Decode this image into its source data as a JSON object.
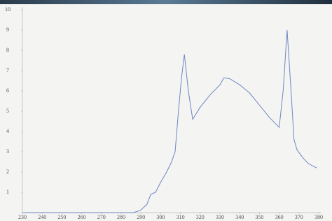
{
  "chart_data": {
    "type": "line",
    "x": [
      230,
      280,
      286,
      289.6,
      293,
      295,
      297.4,
      300,
      303,
      305.5,
      307.3,
      309,
      310.5,
      312,
      314,
      316.2,
      320,
      325,
      330,
      332,
      335,
      340,
      345,
      350,
      355,
      360,
      362,
      364,
      366,
      367.5,
      369,
      372,
      375,
      379
    ],
    "values": [
      0,
      0,
      0,
      0.1,
      0.4,
      0.9,
      1.0,
      1.5,
      2.0,
      2.5,
      3.0,
      5.0,
      6.6,
      7.8,
      6.0,
      4.6,
      5.2,
      5.8,
      6.3,
      6.65,
      6.6,
      6.3,
      5.9,
      5.3,
      4.7,
      4.2,
      6.0,
      9.0,
      6.0,
      3.6,
      3.1,
      2.7,
      2.4,
      2.2
    ],
    "color": "#6f86c4",
    "xlim": [
      230,
      380
    ],
    "xticks": [
      230,
      240,
      250,
      260,
      270,
      280,
      290,
      300,
      310,
      320,
      330,
      340,
      350,
      360,
      370,
      380
    ],
    "ylim": [
      0,
      10
    ],
    "yticks": [
      1,
      2,
      3,
      4,
      5,
      6,
      7,
      8,
      9,
      10
    ]
  }
}
